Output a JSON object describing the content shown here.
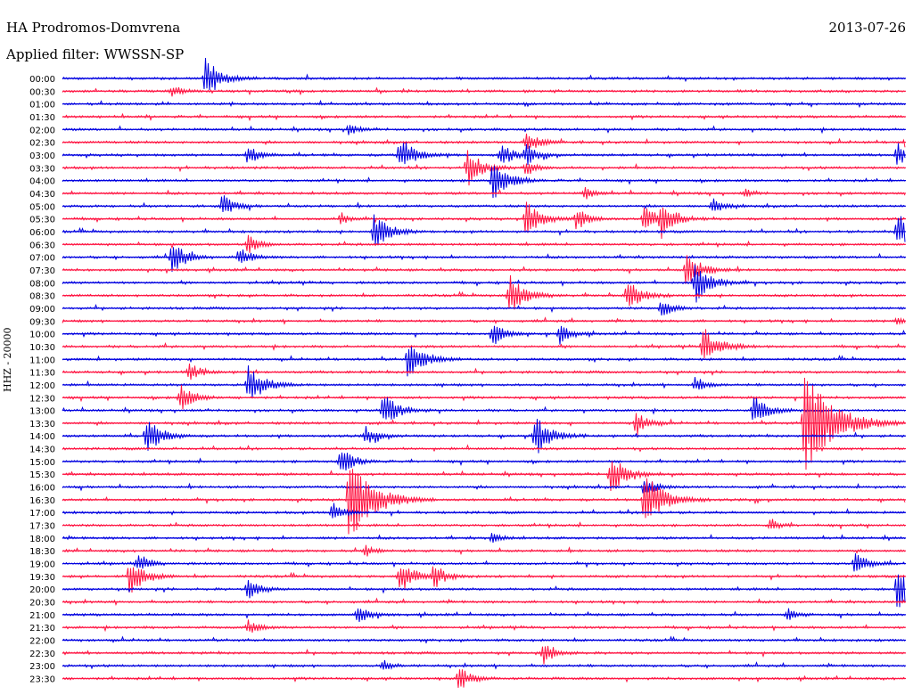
{
  "header": {
    "station": "HA Prodromos-Domvrena",
    "date": "2013-07-26",
    "filter": "Applied filter: WWSSN-SP"
  },
  "chart_data": {
    "type": "line",
    "title": "HA Prodromos-Domvrena",
    "ylabel": "HHZ - 20000",
    "colors": [
      "#0000e0",
      "#ff1744"
    ],
    "rows": [
      {
        "label": "00:00",
        "color": "blue",
        "events": [
          [
            0.17,
            1.0
          ]
        ]
      },
      {
        "label": "00:30",
        "color": "red",
        "events": [
          [
            0.13,
            0.35
          ]
        ]
      },
      {
        "label": "01:00",
        "color": "blue",
        "events": []
      },
      {
        "label": "01:30",
        "color": "red",
        "events": []
      },
      {
        "label": "02:00",
        "color": "blue",
        "events": [
          [
            0.34,
            0.3
          ]
        ]
      },
      {
        "label": "02:30",
        "color": "red",
        "events": [
          [
            0.55,
            0.6
          ],
          [
            1.0,
            0.5
          ]
        ]
      },
      {
        "label": "03:00",
        "color": "blue",
        "events": [
          [
            0.22,
            0.5
          ],
          [
            0.4,
            0.9
          ],
          [
            0.52,
            0.6
          ],
          [
            0.55,
            0.5
          ],
          [
            0.99,
            0.6
          ]
        ]
      },
      {
        "label": "03:30",
        "color": "red",
        "events": [
          [
            0.48,
            0.9
          ],
          [
            0.55,
            0.4
          ]
        ]
      },
      {
        "label": "04:00",
        "color": "blue",
        "events": [
          [
            0.51,
            1.0
          ]
        ]
      },
      {
        "label": "04:30",
        "color": "red",
        "events": [
          [
            0.62,
            0.3
          ],
          [
            0.81,
            0.2
          ]
        ]
      },
      {
        "label": "05:00",
        "color": "blue",
        "events": [
          [
            0.19,
            0.6
          ],
          [
            0.77,
            0.4
          ]
        ]
      },
      {
        "label": "05:30",
        "color": "red",
        "events": [
          [
            0.33,
            0.3
          ],
          [
            0.55,
            0.9
          ],
          [
            0.61,
            0.6
          ],
          [
            0.69,
            0.7
          ],
          [
            0.71,
            0.8
          ]
        ]
      },
      {
        "label": "06:00",
        "color": "blue",
        "events": [
          [
            0.37,
            0.9
          ],
          [
            0.99,
            0.9
          ]
        ]
      },
      {
        "label": "06:30",
        "color": "red",
        "events": [
          [
            0.22,
            0.5
          ]
        ]
      },
      {
        "label": "07:00",
        "color": "blue",
        "events": [
          [
            0.13,
            0.8
          ],
          [
            0.21,
            0.5
          ]
        ]
      },
      {
        "label": "07:30",
        "color": "red",
        "events": [
          [
            0.74,
            0.9
          ]
        ]
      },
      {
        "label": "08:00",
        "color": "blue",
        "events": [
          [
            0.75,
            1.0
          ]
        ]
      },
      {
        "label": "08:30",
        "color": "red",
        "events": [
          [
            0.53,
            1.0
          ],
          [
            0.67,
            0.8
          ]
        ]
      },
      {
        "label": "09:00",
        "color": "blue",
        "events": [
          [
            0.71,
            0.5
          ]
        ]
      },
      {
        "label": "09:30",
        "color": "red",
        "events": [
          [
            0.99,
            0.3
          ]
        ]
      },
      {
        "label": "10:00",
        "color": "blue",
        "events": [
          [
            0.51,
            0.6
          ],
          [
            0.59,
            0.5
          ]
        ]
      },
      {
        "label": "10:30",
        "color": "red",
        "events": [
          [
            0.76,
            1.0
          ]
        ]
      },
      {
        "label": "11:00",
        "color": "blue",
        "events": [
          [
            0.41,
            1.0
          ]
        ]
      },
      {
        "label": "11:30",
        "color": "red",
        "events": [
          [
            0.15,
            0.5
          ]
        ]
      },
      {
        "label": "12:00",
        "color": "blue",
        "events": [
          [
            0.22,
            1.0
          ],
          [
            0.75,
            0.4
          ]
        ]
      },
      {
        "label": "12:30",
        "color": "red",
        "events": [
          [
            0.14,
            0.7
          ]
        ]
      },
      {
        "label": "13:00",
        "color": "blue",
        "events": [
          [
            0.38,
            0.9
          ],
          [
            0.82,
            0.8
          ]
        ]
      },
      {
        "label": "13:30",
        "color": "red",
        "events": [
          [
            0.68,
            0.6
          ],
          [
            0.88,
            2.5
          ]
        ]
      },
      {
        "label": "14:00",
        "color": "blue",
        "events": [
          [
            0.1,
            0.9
          ],
          [
            0.36,
            0.5
          ],
          [
            0.56,
            1.0
          ]
        ]
      },
      {
        "label": "14:30",
        "color": "red",
        "events": []
      },
      {
        "label": "15:00",
        "color": "blue",
        "events": [
          [
            0.33,
            0.7
          ]
        ]
      },
      {
        "label": "15:30",
        "color": "red",
        "events": [
          [
            0.65,
            1.0
          ]
        ]
      },
      {
        "label": "16:00",
        "color": "blue",
        "events": [
          [
            0.69,
            0.5
          ]
        ]
      },
      {
        "label": "16:30",
        "color": "red",
        "events": [
          [
            0.34,
            2.0
          ],
          [
            0.69,
            1.4
          ]
        ]
      },
      {
        "label": "17:00",
        "color": "blue",
        "events": [
          [
            0.32,
            0.5
          ]
        ]
      },
      {
        "label": "17:30",
        "color": "red",
        "events": [
          [
            0.84,
            0.3
          ]
        ]
      },
      {
        "label": "18:00",
        "color": "blue",
        "events": [
          [
            0.51,
            0.3
          ]
        ]
      },
      {
        "label": "18:30",
        "color": "red",
        "events": [
          [
            0.36,
            0.3
          ]
        ]
      },
      {
        "label": "19:00",
        "color": "blue",
        "events": [
          [
            0.09,
            0.5
          ],
          [
            0.94,
            0.6
          ]
        ]
      },
      {
        "label": "19:30",
        "color": "red",
        "events": [
          [
            0.08,
            0.9
          ],
          [
            0.4,
            0.8
          ],
          [
            0.44,
            0.6
          ]
        ]
      },
      {
        "label": "20:00",
        "color": "blue",
        "events": [
          [
            0.22,
            0.6
          ],
          [
            0.99,
            1.0
          ]
        ]
      },
      {
        "label": "20:30",
        "color": "red",
        "events": []
      },
      {
        "label": "21:00",
        "color": "blue",
        "events": [
          [
            0.35,
            0.5
          ],
          [
            0.86,
            0.3
          ]
        ]
      },
      {
        "label": "21:30",
        "color": "red",
        "events": [
          [
            0.22,
            0.4
          ]
        ]
      },
      {
        "label": "22:00",
        "color": "blue",
        "events": []
      },
      {
        "label": "22:30",
        "color": "red",
        "events": [
          [
            0.57,
            0.6
          ]
        ]
      },
      {
        "label": "23:00",
        "color": "blue",
        "events": [
          [
            0.38,
            0.3
          ]
        ]
      },
      {
        "label": "23:30",
        "color": "red",
        "events": [
          [
            0.47,
            0.6
          ]
        ]
      }
    ]
  }
}
